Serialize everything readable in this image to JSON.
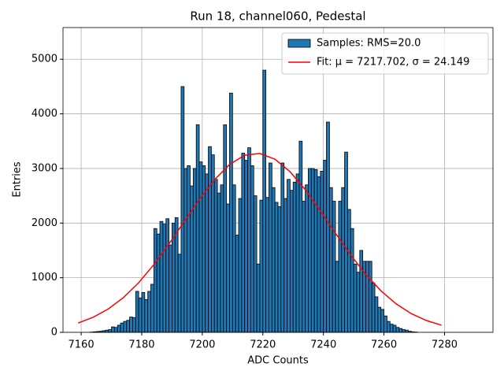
{
  "chart_data": {
    "type": "histogram",
    "title": "Run 18, channel060, Pedestal",
    "xlabel": "ADC Counts",
    "ylabel": "Entries",
    "xlim": [
      7154,
      7296
    ],
    "ylim": [
      0,
      5580
    ],
    "xticks": [
      7160,
      7180,
      7200,
      7220,
      7240,
      7260,
      7280
    ],
    "yticks": [
      0,
      1000,
      2000,
      3000,
      4000,
      5000
    ],
    "grid": true,
    "legend": "upper right",
    "series": [
      {
        "name": "Samples: RMS=20.0",
        "type": "histogram",
        "color": "#1f77b4",
        "bins": [
          7163,
          7164,
          7165,
          7166,
          7167,
          7168,
          7169,
          7170,
          7171,
          7172,
          7173,
          7174,
          7175,
          7176,
          7177,
          7178,
          7179,
          7180,
          7181,
          7182,
          7183,
          7184,
          7185,
          7186,
          7187,
          7188,
          7189,
          7190,
          7191,
          7192,
          7193,
          7194,
          7195,
          7196,
          7197,
          7198,
          7199,
          7200,
          7201,
          7202,
          7203,
          7204,
          7205,
          7206,
          7207,
          7208,
          7209,
          7210,
          7211,
          7212,
          7213,
          7214,
          7215,
          7216,
          7217,
          7218,
          7219,
          7220,
          7221,
          7222,
          7223,
          7224,
          7225,
          7226,
          7227,
          7228,
          7229,
          7230,
          7231,
          7232,
          7233,
          7234,
          7235,
          7236,
          7237,
          7238,
          7239,
          7240,
          7241,
          7242,
          7243,
          7244,
          7245,
          7246,
          7247,
          7248,
          7249,
          7250,
          7251,
          7252,
          7253,
          7254,
          7255,
          7256,
          7257,
          7258,
          7259,
          7260,
          7261,
          7262,
          7263,
          7264,
          7265,
          7266,
          7267,
          7268,
          7269,
          7270,
          7271
        ],
        "values": [
          5,
          10,
          15,
          20,
          30,
          40,
          50,
          100,
          90,
          130,
          170,
          200,
          220,
          280,
          270,
          750,
          630,
          730,
          600,
          750,
          880,
          1900,
          1800,
          2030,
          1980,
          2080,
          1600,
          2000,
          2100,
          1430,
          4500,
          3000,
          3050,
          2680,
          3000,
          3800,
          3120,
          3050,
          2900,
          3400,
          3250,
          2800,
          2550,
          2700,
          3800,
          2350,
          4380,
          2700,
          1780,
          2450,
          3280,
          3150,
          3380,
          3050,
          2500,
          1250,
          2420,
          4800,
          2470,
          3100,
          2650,
          2380,
          2300,
          3100,
          2450,
          2800,
          2600,
          2750,
          2900,
          3500,
          2400,
          2700,
          3000,
          3000,
          2980,
          2850,
          2950,
          3150,
          3850,
          2650,
          2400,
          1300,
          2400,
          2650,
          3300,
          2250,
          1900,
          1250,
          1100,
          1500,
          1300,
          1300,
          1300,
          900,
          650,
          460,
          420,
          300,
          200,
          150,
          130,
          90,
          70,
          50,
          40,
          20,
          10,
          5
        ]
      },
      {
        "name": "Fit: μ = 7217.702, σ = 24.149",
        "type": "line",
        "color": "#ff0000",
        "x": [
          7159,
          7164,
          7169,
          7174,
          7179,
          7184,
          7189,
          7194,
          7199,
          7204,
          7209,
          7214,
          7219,
          7224,
          7229,
          7234,
          7239,
          7244,
          7249,
          7254,
          7259,
          7264,
          7269,
          7274,
          7279
        ],
        "values": [
          171,
          277,
          429,
          638,
          908,
          1239,
          1618,
          2026,
          2430,
          2791,
          3074,
          3242,
          3275,
          3170,
          2940,
          2612,
          2223,
          1813,
          1416,
          1060,
          760,
          522,
          343,
          216,
          131
        ]
      }
    ]
  }
}
